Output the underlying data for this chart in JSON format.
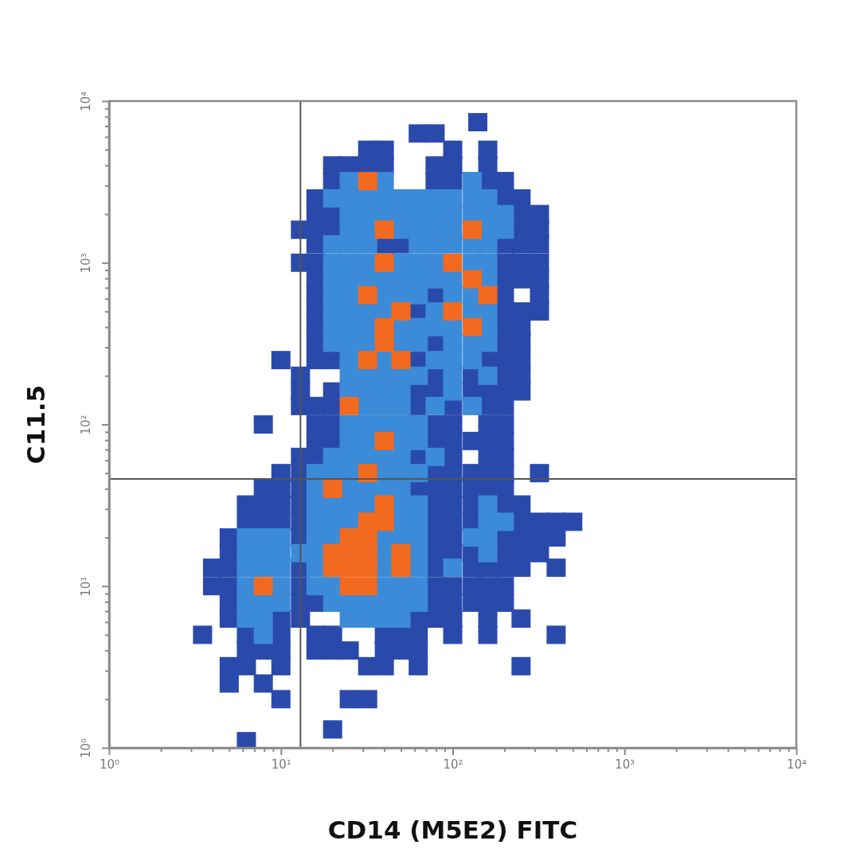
{
  "chart_data": {
    "type": "scatter",
    "xlabel": "CD14 (M5E2) FITC",
    "ylabel": "C11.5",
    "log": "xy",
    "marker": "square",
    "xlim": [
      1,
      10000
    ],
    "ylim": [
      1,
      10000
    ],
    "xticks": [
      {
        "value": 1,
        "label": "10⁰"
      },
      {
        "value": 2,
        "label": null
      },
      {
        "value": 3,
        "label": null
      },
      {
        "value": 4,
        "label": null
      },
      {
        "value": 5,
        "label": null
      },
      {
        "value": 6,
        "label": null
      },
      {
        "value": 7,
        "label": null
      },
      {
        "value": 8,
        "label": null
      },
      {
        "value": 9,
        "label": null
      },
      {
        "value": 10,
        "label": "10¹"
      },
      {
        "value": 20,
        "label": null
      },
      {
        "value": 30,
        "label": null
      },
      {
        "value": 40,
        "label": null
      },
      {
        "value": 50,
        "label": null
      },
      {
        "value": 60,
        "label": null
      },
      {
        "value": 70,
        "label": null
      },
      {
        "value": 80,
        "label": null
      },
      {
        "value": 90,
        "label": null
      },
      {
        "value": 100,
        "label": "10²"
      },
      {
        "value": 200,
        "label": null
      },
      {
        "value": 300,
        "label": null
      },
      {
        "value": 400,
        "label": null
      },
      {
        "value": 500,
        "label": null
      },
      {
        "value": 600,
        "label": null
      },
      {
        "value": 700,
        "label": null
      },
      {
        "value": 800,
        "label": null
      },
      {
        "value": 900,
        "label": null
      },
      {
        "value": 1000,
        "label": "10³"
      },
      {
        "value": 2000,
        "label": null
      },
      {
        "value": 3000,
        "label": null
      },
      {
        "value": 4000,
        "label": null
      },
      {
        "value": 5000,
        "label": null
      },
      {
        "value": 6000,
        "label": null
      },
      {
        "value": 7000,
        "label": null
      },
      {
        "value": 8000,
        "label": null
      },
      {
        "value": 9000,
        "label": null
      },
      {
        "value": 10000,
        "label": "10⁴"
      }
    ],
    "yticks": [
      {
        "value": 1,
        "label": "10⁰"
      },
      {
        "value": 2,
        "label": null
      },
      {
        "value": 3,
        "label": null
      },
      {
        "value": 4,
        "label": null
      },
      {
        "value": 5,
        "label": null
      },
      {
        "value": 6,
        "label": null
      },
      {
        "value": 7,
        "label": null
      },
      {
        "value": 8,
        "label": null
      },
      {
        "value": 9,
        "label": null
      },
      {
        "value": 10,
        "label": "10¹"
      },
      {
        "value": 20,
        "label": null
      },
      {
        "value": 30,
        "label": null
      },
      {
        "value": 40,
        "label": null
      },
      {
        "value": 50,
        "label": null
      },
      {
        "value": 60,
        "label": null
      },
      {
        "value": 70,
        "label": null
      },
      {
        "value": 80,
        "label": null
      },
      {
        "value": 90,
        "label": null
      },
      {
        "value": 100,
        "label": "10²"
      },
      {
        "value": 200,
        "label": null
      },
      {
        "value": 300,
        "label": null
      },
      {
        "value": 400,
        "label": null
      },
      {
        "value": 500,
        "label": null
      },
      {
        "value": 600,
        "label": null
      },
      {
        "value": 700,
        "label": null
      },
      {
        "value": 800,
        "label": null
      },
      {
        "value": 900,
        "label": null
      },
      {
        "value": 1000,
        "label": "10³"
      },
      {
        "value": 2000,
        "label": null
      },
      {
        "value": 3000,
        "label": null
      },
      {
        "value": 4000,
        "label": null
      },
      {
        "value": 5000,
        "label": null
      },
      {
        "value": 6000,
        "label": null
      },
      {
        "value": 7000,
        "label": null
      },
      {
        "value": 8000,
        "label": null
      },
      {
        "value": 9000,
        "label": null
      },
      {
        "value": 10000,
        "label": "10⁴"
      }
    ],
    "ref_lines": [
      {
        "axis": "x",
        "value": 13,
        "color": "#555555"
      },
      {
        "axis": "y",
        "value": 46,
        "color": "#555555"
      }
    ],
    "series": [
      {
        "color": "#2a4aab",
        "x": [
          140,
          63,
          79,
          32,
          40,
          100,
          160,
          20,
          25,
          32,
          40,
          79,
          100,
          160,
          20,
          79,
          100,
          160,
          200,
          16,
          200,
          250,
          16,
          20,
          250,
          320,
          13,
          16,
          20,
          250,
          320,
          16,
          40,
          50,
          200,
          250,
          320,
          13,
          16,
          200,
          250,
          320,
          16,
          200,
          250,
          320,
          16,
          79,
          200,
          320,
          16,
          63,
          200,
          250,
          320,
          16,
          200,
          250,
          16,
          79,
          200,
          250,
          10,
          16,
          20,
          63,
          160,
          200,
          250,
          13,
          79,
          130,
          200,
          250,
          13,
          20,
          63,
          79,
          130,
          160,
          200,
          250,
          13,
          16,
          20,
          63,
          100,
          160,
          200,
          7.9,
          16,
          20,
          79,
          100,
          160,
          200,
          16,
          20,
          79,
          100,
          130,
          160,
          200,
          13,
          16,
          63,
          100,
          160,
          200,
          10,
          13,
          79,
          100,
          130,
          160,
          200,
          320,
          7.9,
          10,
          13,
          63,
          79,
          100,
          130,
          160,
          200,
          6.3,
          7.9,
          10,
          13,
          79,
          100,
          130,
          200,
          250,
          6.3,
          7.9,
          10,
          13,
          79,
          100,
          130,
          250,
          320,
          400,
          500,
          5.0,
          13,
          79,
          100,
          200,
          250,
          320,
          400,
          5.0,
          79,
          100,
          130,
          200,
          250,
          320,
          4.0,
          5.0,
          13,
          79,
          130,
          160,
          200,
          250,
          400,
          4.0,
          5.0,
          13,
          79,
          100,
          130,
          160,
          200,
          5.0,
          13,
          16,
          79,
          100,
          130,
          160,
          200,
          5.0,
          10,
          13,
          63,
          79,
          100,
          160,
          250,
          3.5,
          6.3,
          10,
          16,
          20,
          40,
          50,
          63,
          100,
          160,
          400,
          6.3,
          7.9,
          10,
          16,
          20,
          25,
          40,
          50,
          63,
          5.0,
          6.3,
          10,
          32,
          40,
          63,
          250,
          5.0,
          7.9,
          10,
          25,
          32,
          20,
          6.3
        ],
        "values": [
          7400,
          6300,
          6300,
          5000,
          5000,
          5000,
          5000,
          4000,
          4000,
          4000,
          4000,
          4000,
          4000,
          4000,
          3200,
          3200,
          3200,
          3200,
          3200,
          2500,
          2500,
          2500,
          2000,
          2000,
          2000,
          2000,
          1600,
          1600,
          1600,
          1600,
          1600,
          1300,
          1300,
          1300,
          1300,
          1300,
          1300,
          1000,
          1000,
          1000,
          1000,
          1000,
          790,
          790,
          790,
          790,
          630,
          630,
          630,
          630,
          500,
          500,
          500,
          500,
          500,
          400,
          400,
          400,
          320,
          320,
          320,
          320,
          250,
          250,
          250,
          250,
          250,
          250,
          250,
          200,
          200,
          200,
          200,
          200,
          160,
          160,
          160,
          160,
          160,
          160,
          160,
          160,
          130,
          130,
          130,
          130,
          130,
          130,
          130,
          100,
          100,
          100,
          100,
          100,
          100,
          100,
          79,
          79,
          79,
          79,
          79,
          79,
          79,
          63,
          63,
          63,
          63,
          63,
          63,
          50,
          50,
          50,
          50,
          50,
          50,
          50,
          50,
          40,
          40,
          40,
          40,
          40,
          40,
          40,
          40,
          40,
          32,
          32,
          32,
          32,
          32,
          32,
          32,
          32,
          32,
          25,
          25,
          25,
          25,
          25,
          25,
          25,
          25,
          25,
          25,
          25,
          20,
          20,
          20,
          20,
          20,
          20,
          20,
          20,
          16,
          16,
          16,
          16,
          16,
          16,
          16,
          13,
          13,
          13,
          13,
          13,
          13,
          13,
          13,
          13,
          10,
          10,
          10,
          10,
          10,
          10,
          10,
          10,
          7.9,
          7.9,
          7.9,
          7.9,
          7.9,
          7.9,
          7.9,
          7.9,
          6.3,
          6.3,
          6.3,
          6.3,
          6.3,
          6.3,
          6.3,
          6.3,
          5.0,
          5.0,
          5.0,
          5.0,
          5.0,
          5.0,
          5.0,
          5.0,
          5.0,
          5.0,
          5.0,
          4.0,
          4.0,
          4.0,
          4.0,
          4.0,
          4.0,
          4.0,
          4.0,
          4.0,
          3.2,
          3.2,
          3.2,
          3.2,
          3.2,
          3.2,
          3.2,
          2.5,
          2.5,
          2.0,
          2.0,
          2.0,
          1.3,
          1.1
        ]
      },
      {
        "color": "#3b8bd8",
        "x": [
          25,
          40,
          130,
          20,
          25,
          32,
          40,
          50,
          63,
          79,
          100,
          130,
          160,
          25,
          32,
          40,
          50,
          63,
          79,
          100,
          130,
          160,
          200,
          25,
          32,
          50,
          63,
          79,
          100,
          160,
          200,
          20,
          25,
          32,
          63,
          79,
          100,
          130,
          160,
          20,
          25,
          32,
          50,
          63,
          79,
          130,
          160,
          20,
          25,
          32,
          40,
          50,
          63,
          79,
          100,
          160,
          20,
          25,
          40,
          50,
          63,
          100,
          130,
          20,
          25,
          32,
          40,
          79,
          130,
          160,
          20,
          25,
          32,
          50,
          63,
          79,
          100,
          160,
          20,
          25,
          32,
          50,
          63,
          100,
          130,
          160,
          25,
          40,
          79,
          100,
          130,
          25,
          32,
          40,
          50,
          63,
          100,
          160,
          25,
          32,
          40,
          50,
          100,
          32,
          40,
          50,
          79,
          130,
          25,
          32,
          40,
          50,
          63,
          25,
          32,
          50,
          63,
          20,
          25,
          32,
          40,
          50,
          79,
          16,
          20,
          25,
          40,
          50,
          63,
          16,
          25,
          32,
          40,
          50,
          16,
          20,
          25,
          32,
          50,
          63,
          160,
          16,
          20,
          25,
          50,
          63,
          160,
          200,
          6.3,
          7.9,
          10,
          16,
          20,
          40,
          50,
          63,
          130,
          160,
          6.3,
          7.9,
          10,
          13,
          16,
          40,
          63,
          160,
          6.3,
          7.9,
          10,
          16,
          40,
          63,
          100,
          6.3,
          10,
          16,
          20,
          40,
          50,
          63,
          6.3,
          7.9,
          10,
          20,
          25,
          32,
          40,
          50,
          63,
          6.3,
          7.9,
          25,
          32,
          40,
          50,
          7.9
        ],
        "values": [
          3200,
          3200,
          3200,
          2500,
          2500,
          2500,
          2500,
          2500,
          2500,
          2500,
          2500,
          2500,
          2500,
          2000,
          2000,
          2000,
          2000,
          2000,
          2000,
          2000,
          2000,
          2000,
          2000,
          1600,
          1600,
          1600,
          1600,
          1600,
          1600,
          1600,
          1600,
          1300,
          1300,
          1300,
          1300,
          1300,
          1300,
          1300,
          1300,
          1000,
          1000,
          1000,
          1000,
          1000,
          1000,
          1000,
          1000,
          790,
          790,
          790,
          790,
          790,
          790,
          790,
          790,
          790,
          630,
          630,
          630,
          630,
          630,
          630,
          630,
          500,
          500,
          500,
          500,
          500,
          500,
          500,
          400,
          400,
          400,
          400,
          400,
          400,
          400,
          400,
          320,
          320,
          320,
          320,
          320,
          320,
          320,
          320,
          250,
          250,
          250,
          250,
          250,
          200,
          200,
          200,
          200,
          200,
          200,
          200,
          160,
          160,
          160,
          160,
          160,
          130,
          130,
          130,
          130,
          130,
          100,
          100,
          100,
          100,
          100,
          79,
          79,
          79,
          79,
          63,
          63,
          63,
          63,
          63,
          63,
          50,
          50,
          50,
          50,
          50,
          50,
          40,
          40,
          40,
          40,
          40,
          32,
          32,
          32,
          32,
          32,
          32,
          32,
          25,
          25,
          25,
          25,
          25,
          25,
          25,
          20,
          20,
          20,
          20,
          20,
          20,
          20,
          20,
          20,
          20,
          16,
          16,
          16,
          16,
          16,
          16,
          16,
          16,
          13,
          13,
          13,
          13,
          13,
          13,
          13,
          10,
          10,
          10,
          10,
          10,
          10,
          10,
          7.9,
          7.9,
          7.9,
          7.9,
          7.9,
          7.9,
          7.9,
          7.9,
          7.9,
          6.3,
          6.3,
          6.3,
          6.3,
          6.3,
          6.3,
          5.0
        ]
      },
      {
        "color": "#f26a1f",
        "x": [
          32,
          40,
          130,
          40,
          100,
          130,
          32,
          160,
          50,
          100,
          40,
          130,
          40,
          32,
          50,
          25,
          40,
          32,
          20,
          40,
          32,
          40,
          25,
          32,
          20,
          25,
          32,
          50,
          20,
          25,
          32,
          50,
          7.9,
          25,
          32
        ],
        "values": [
          3200,
          1600,
          1600,
          1000,
          1000,
          790,
          630,
          630,
          500,
          500,
          400,
          400,
          320,
          250,
          250,
          130,
          79,
          50,
          40,
          32,
          25,
          25,
          20,
          20,
          16,
          16,
          16,
          16,
          13,
          13,
          13,
          13,
          10,
          10,
          10
        ]
      }
    ]
  }
}
